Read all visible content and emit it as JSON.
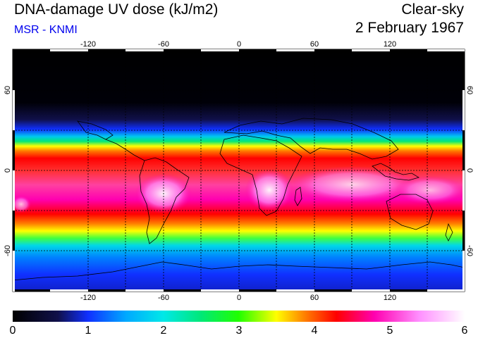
{
  "header": {
    "title": "DNA-damage UV dose (kJ/m2)",
    "source": "MSR - KNMI",
    "sky_condition": "Clear-sky",
    "date": "2 February 1967"
  },
  "map": {
    "lon_ticks": [
      "-120",
      "-60",
      "0",
      "60",
      "120"
    ],
    "lat_ticks": [
      "60",
      "0",
      "-60"
    ]
  },
  "colorbar": {
    "labels": [
      "0",
      "1",
      "2",
      "3",
      "4",
      "5",
      "6"
    ],
    "stops": [
      {
        "value": 0.0,
        "color": "#000000"
      },
      {
        "value": 0.6,
        "color": "#10104a"
      },
      {
        "value": 1.0,
        "color": "#1030ff"
      },
      {
        "value": 1.5,
        "color": "#00a8ff"
      },
      {
        "value": 2.0,
        "color": "#00e8e8"
      },
      {
        "value": 2.5,
        "color": "#00e878"
      },
      {
        "value": 3.0,
        "color": "#20ff00"
      },
      {
        "value": 3.5,
        "color": "#ffff00"
      },
      {
        "value": 3.9,
        "color": "#ff7800"
      },
      {
        "value": 4.3,
        "color": "#ff0000"
      },
      {
        "value": 4.8,
        "color": "#ff00b0"
      },
      {
        "value": 5.4,
        "color": "#ff90ff"
      },
      {
        "value": 6.0,
        "color": "#ffffff"
      }
    ]
  }
}
